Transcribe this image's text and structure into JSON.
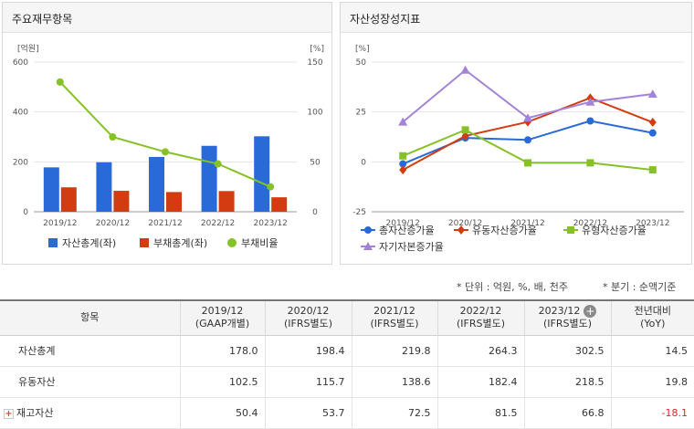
{
  "panels": {
    "left_title": "주요재무항목",
    "right_title": "자산성장성지표"
  },
  "chart_data": [
    {
      "type": "bar",
      "categories": [
        "2019/12",
        "2020/12",
        "2021/12",
        "2022/12",
        "2023/12"
      ],
      "series": [
        {
          "name": "자산총계(좌)",
          "type": "bar",
          "axis": "left",
          "color": "#2a6ad8",
          "values": [
            178.0,
            198.4,
            219.8,
            264.3,
            302.5
          ]
        },
        {
          "name": "부채총계(좌)",
          "type": "bar",
          "axis": "left",
          "color": "#d23c10",
          "values": [
            98,
            84,
            79,
            83,
            58
          ]
        },
        {
          "name": "부채비율",
          "type": "line",
          "axis": "right",
          "color": "#86c127",
          "values": [
            130,
            75,
            60,
            48,
            25
          ]
        }
      ],
      "y_left": {
        "unit": "[억원]",
        "ylim": [
          0,
          600
        ],
        "ticks": [
          0,
          200,
          400,
          600
        ]
      },
      "y_right": {
        "unit": "[%]",
        "ylim": [
          0,
          150
        ],
        "ticks": [
          0,
          50,
          100,
          150
        ]
      },
      "legend_position": "bottom"
    },
    {
      "type": "line",
      "categories": [
        "2019/12",
        "2020/12",
        "2021/12",
        "2022/12",
        "2023/12"
      ],
      "series": [
        {
          "name": "총자산증가율",
          "color": "#2a6ad8",
          "marker": "circle",
          "values": [
            -1,
            12,
            11,
            20.5,
            14.5
          ]
        },
        {
          "name": "유동자산증가율",
          "color": "#d23c10",
          "marker": "diamond",
          "values": [
            -4,
            13,
            20,
            32,
            19.8
          ]
        },
        {
          "name": "유형자산증가율",
          "color": "#86c127",
          "marker": "square",
          "values": [
            3,
            16,
            -0.5,
            -0.5,
            -4
          ]
        },
        {
          "name": "자기자본증가율",
          "color": "#a383d8",
          "marker": "triangle",
          "values": [
            20,
            46,
            22,
            30,
            34
          ]
        }
      ],
      "y": {
        "unit": "[%]",
        "ylim": [
          -25,
          50
        ],
        "ticks": [
          -25,
          0,
          25,
          50
        ]
      },
      "legend_position": "bottom"
    }
  ],
  "notes": {
    "unit": "* 단위 : 억원, %, 배, 천주",
    "quarter": "* 분기 : 순액기준"
  },
  "table": {
    "headers": [
      {
        "l1": "항목",
        "l2": ""
      },
      {
        "l1": "2019/12",
        "l2": "(GAAP개별)"
      },
      {
        "l1": "2020/12",
        "l2": "(IFRS별도)"
      },
      {
        "l1": "2021/12",
        "l2": "(IFRS별도)"
      },
      {
        "l1": "2022/12",
        "l2": "(IFRS별도)"
      },
      {
        "l1": "2023/12",
        "l2": "(IFRS별도)"
      },
      {
        "l1": "전년대비",
        "l2": "(YoY)"
      }
    ],
    "rows": [
      {
        "label": "자산총계",
        "values": [
          "178.0",
          "198.4",
          "219.8",
          "264.3",
          "302.5"
        ],
        "yoy": "14.5",
        "negative": false,
        "expandable": false
      },
      {
        "label": "유동자산",
        "values": [
          "102.5",
          "115.7",
          "138.6",
          "182.4",
          "218.5"
        ],
        "yoy": "19.8",
        "negative": false,
        "expandable": false
      },
      {
        "label": "재고자산",
        "values": [
          "50.4",
          "53.7",
          "72.5",
          "81.5",
          "66.8"
        ],
        "yoy": "-18.1",
        "negative": true,
        "expandable": true
      }
    ]
  },
  "icons": {
    "add_column": "plus-circle-icon",
    "expand_row": "plus-box-icon"
  }
}
